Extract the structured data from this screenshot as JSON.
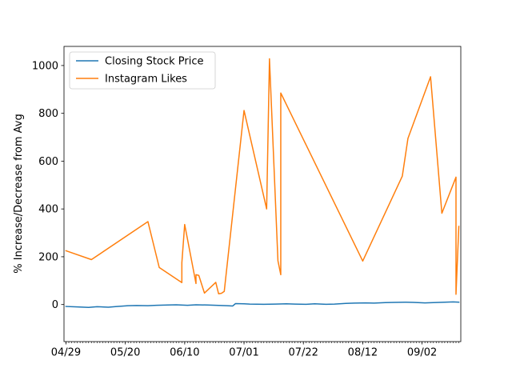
{
  "chart_data": {
    "type": "line",
    "title": "",
    "xlabel": "",
    "ylabel": "% Increase/Decrease from Avg",
    "x_tick_labels": [
      "04/29",
      "05/20",
      "06/10",
      "07/01",
      "07/22",
      "08/12",
      "09/02"
    ],
    "x_tick_dates": [
      "2019-04-29",
      "2019-05-20",
      "2019-06-10",
      "2019-07-01",
      "2019-07-22",
      "2019-08-12",
      "2019-09-02"
    ],
    "xlim": [
      "2019-04-29",
      "2019-09-15"
    ],
    "yticks": [
      0,
      200,
      400,
      600,
      800,
      1000
    ],
    "ylim": [
      -155,
      1080
    ],
    "grid": false,
    "legend_position": "upper-left",
    "series": [
      {
        "name": "Closing Stock Price",
        "color": "#1f77b4",
        "points": [
          [
            "2019-04-29",
            -8
          ],
          [
            "2019-05-03",
            -10
          ],
          [
            "2019-05-07",
            -12
          ],
          [
            "2019-05-10",
            -9
          ],
          [
            "2019-05-14",
            -11
          ],
          [
            "2019-05-17",
            -8
          ],
          [
            "2019-05-21",
            -5
          ],
          [
            "2019-05-24",
            -4
          ],
          [
            "2019-05-28",
            -5
          ],
          [
            "2019-05-31",
            -3
          ],
          [
            "2019-06-04",
            -2
          ],
          [
            "2019-06-07",
            -1
          ],
          [
            "2019-06-11",
            -3
          ],
          [
            "2019-06-14",
            -1
          ],
          [
            "2019-06-18",
            -2
          ],
          [
            "2019-06-21",
            -3
          ],
          [
            "2019-06-25",
            -5
          ],
          [
            "2019-06-27",
            -6
          ],
          [
            "2019-06-28",
            4
          ],
          [
            "2019-07-01",
            3
          ],
          [
            "2019-07-03",
            2
          ],
          [
            "2019-07-08",
            1
          ],
          [
            "2019-07-12",
            2
          ],
          [
            "2019-07-16",
            3
          ],
          [
            "2019-07-19",
            2
          ],
          [
            "2019-07-23",
            1
          ],
          [
            "2019-07-26",
            3
          ],
          [
            "2019-07-30",
            1
          ],
          [
            "2019-08-02",
            2
          ],
          [
            "2019-08-06",
            5
          ],
          [
            "2019-08-09",
            6
          ],
          [
            "2019-08-13",
            7
          ],
          [
            "2019-08-16",
            6
          ],
          [
            "2019-08-20",
            8
          ],
          [
            "2019-08-23",
            9
          ],
          [
            "2019-08-27",
            10
          ],
          [
            "2019-08-30",
            9
          ],
          [
            "2019-09-03",
            7
          ],
          [
            "2019-09-06",
            8
          ],
          [
            "2019-09-10",
            10
          ],
          [
            "2019-09-13",
            11
          ],
          [
            "2019-09-15",
            10
          ]
        ]
      },
      {
        "name": "Instagram Likes",
        "color": "#ff7f0e",
        "points": [
          [
            "2019-04-29",
            225
          ],
          [
            "2019-05-08",
            188
          ],
          [
            "2019-05-28",
            347
          ],
          [
            "2019-06-01",
            155
          ],
          [
            "2019-06-09",
            92
          ],
          [
            "2019-06-09",
            175
          ],
          [
            "2019-06-10",
            335
          ],
          [
            "2019-06-14",
            88
          ],
          [
            "2019-06-14",
            125
          ],
          [
            "2019-06-15",
            122
          ],
          [
            "2019-06-17",
            48
          ],
          [
            "2019-06-21",
            93
          ],
          [
            "2019-06-22",
            45
          ],
          [
            "2019-06-23",
            47
          ],
          [
            "2019-06-24",
            55
          ],
          [
            "2019-07-01",
            812
          ],
          [
            "2019-07-09",
            400
          ],
          [
            "2019-07-10",
            1028
          ],
          [
            "2019-07-13",
            183
          ],
          [
            "2019-07-14",
            125
          ],
          [
            "2019-07-14",
            885
          ],
          [
            "2019-08-12",
            182
          ],
          [
            "2019-08-26",
            537
          ],
          [
            "2019-08-28",
            695
          ],
          [
            "2019-09-05",
            953
          ],
          [
            "2019-09-09",
            382
          ],
          [
            "2019-09-14",
            533
          ],
          [
            "2019-09-14",
            43
          ],
          [
            "2019-09-15",
            327
          ]
        ]
      }
    ]
  }
}
